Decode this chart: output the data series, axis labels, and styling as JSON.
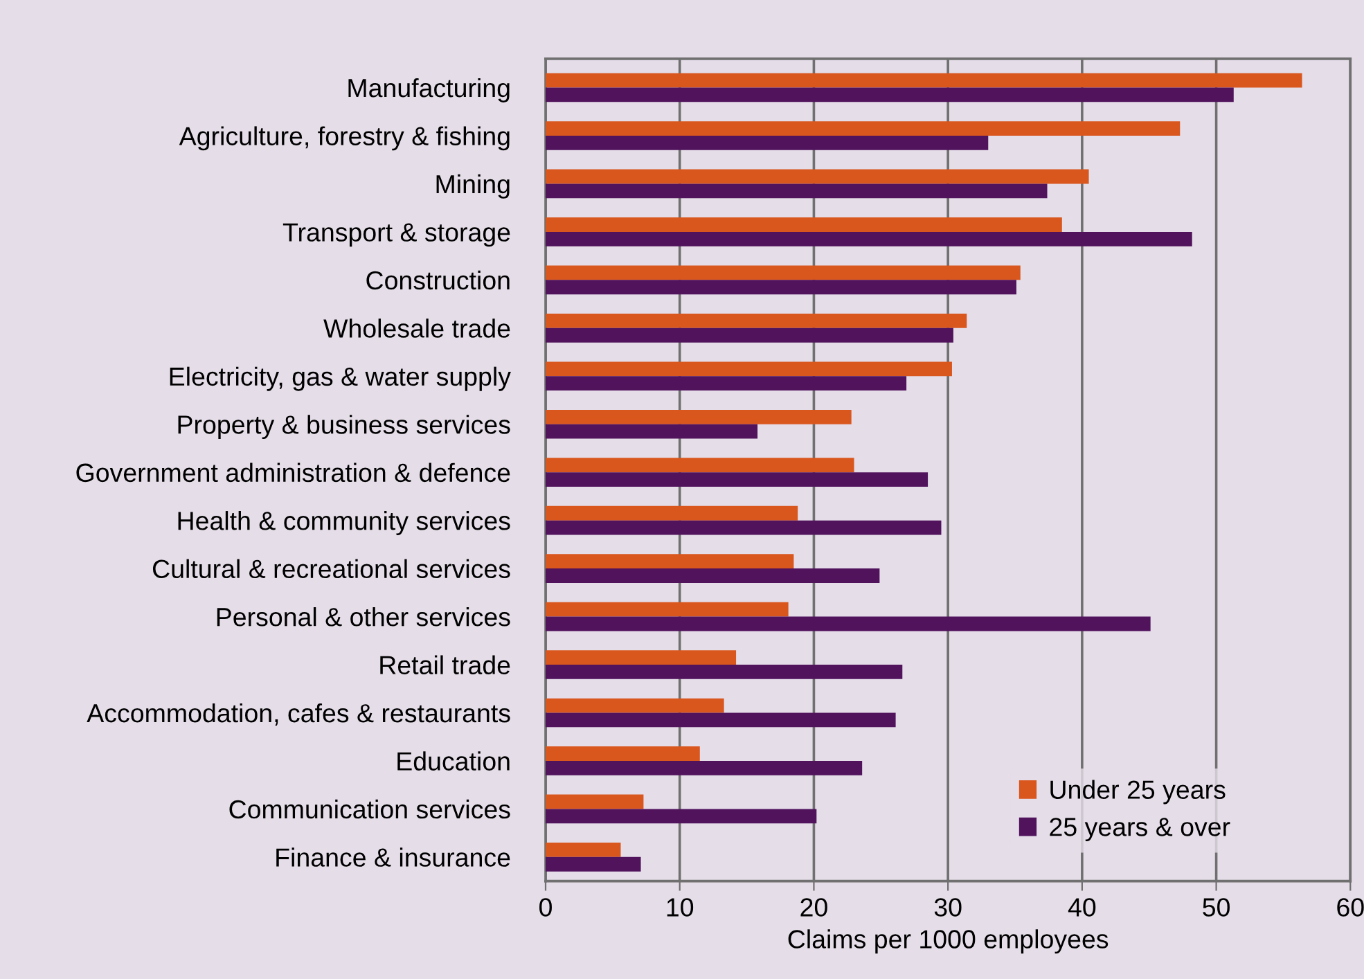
{
  "chart_data": {
    "type": "bar",
    "orientation": "horizontal",
    "xlabel": "Claims per 1000 employees",
    "categories": [
      "Manufacturing",
      "Agriculture, forestry & fishing",
      "Mining",
      "Transport & storage",
      "Construction",
      "Wholesale trade",
      "Electricity, gas & water supply",
      "Property & business services",
      "Government administration & defence",
      "Health & community services",
      "Cultural & recreational services",
      "Personal & other services",
      "Retail trade",
      "Accommodation, cafes & restaurants",
      "Education",
      "Communication services",
      "Finance & insurance"
    ],
    "series": [
      {
        "name": "Under 25 years",
        "color": "#d9561d",
        "values": [
          56.4,
          47.3,
          40.5,
          38.5,
          35.4,
          31.4,
          30.3,
          22.8,
          23.0,
          18.8,
          18.5,
          18.1,
          14.2,
          13.3,
          11.5,
          7.3,
          5.6
        ]
      },
      {
        "name": "25 years & over",
        "color": "#50135c",
        "values": [
          51.3,
          33.0,
          37.4,
          48.2,
          35.1,
          30.4,
          26.9,
          15.8,
          28.5,
          29.5,
          24.9,
          45.1,
          26.6,
          26.1,
          23.6,
          20.2,
          7.1
        ]
      }
    ],
    "xlim": [
      0,
      60
    ],
    "xticks": [
      0,
      10,
      20,
      30,
      40,
      50,
      60
    ],
    "grid": "x",
    "legend": "bottom right"
  }
}
